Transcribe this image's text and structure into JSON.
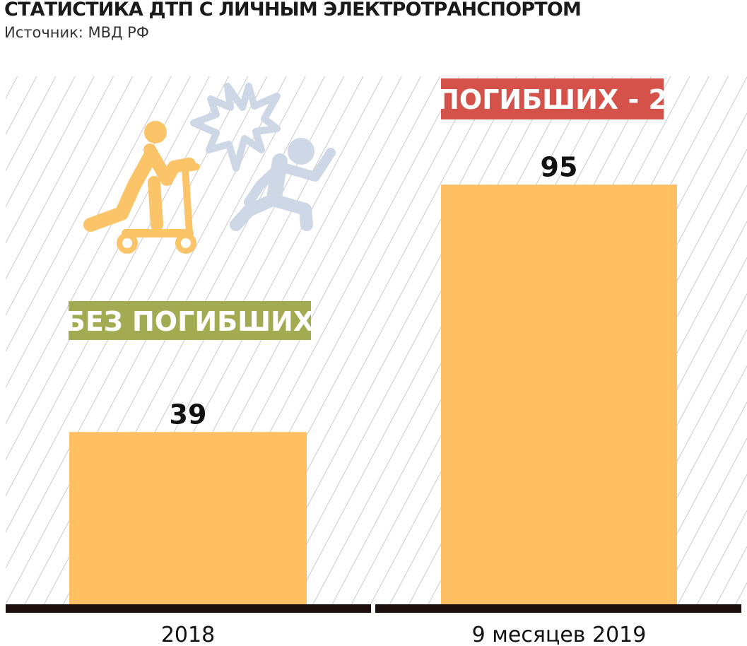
{
  "header": {
    "title": "СТАТИСТИКА ДТП С ЛИЧНЫМ ЭЛЕКТРОТРАНСПОРТОМ",
    "source": "Источник: МВД РФ"
  },
  "chart_data": {
    "type": "bar",
    "categories": [
      "2018",
      "9 месяцев 2019"
    ],
    "values": [
      39,
      95
    ],
    "value_labels": [
      "39",
      "95"
    ],
    "ylim": [
      0,
      100
    ],
    "annotations": [
      {
        "text": "БЕЗ ПОГИБШИХ",
        "category": "2018",
        "color": "#a3ab52"
      },
      {
        "text": "ПОГИБШИХ - 2",
        "category": "9 месяцев 2019",
        "color": "#d4524a"
      }
    ],
    "grid": false,
    "background": "diagonal-hatch"
  },
  "colors": {
    "bar": "#ffbf63",
    "baseline": "#1e0f0f",
    "hatch": "#bdbdbd",
    "scooter_icon": "#fbc469",
    "pedestrian_icon": "#cdd7e6"
  },
  "icons": [
    "scooter-rider-icon",
    "collision-burst-icon",
    "falling-pedestrian-icon"
  ]
}
